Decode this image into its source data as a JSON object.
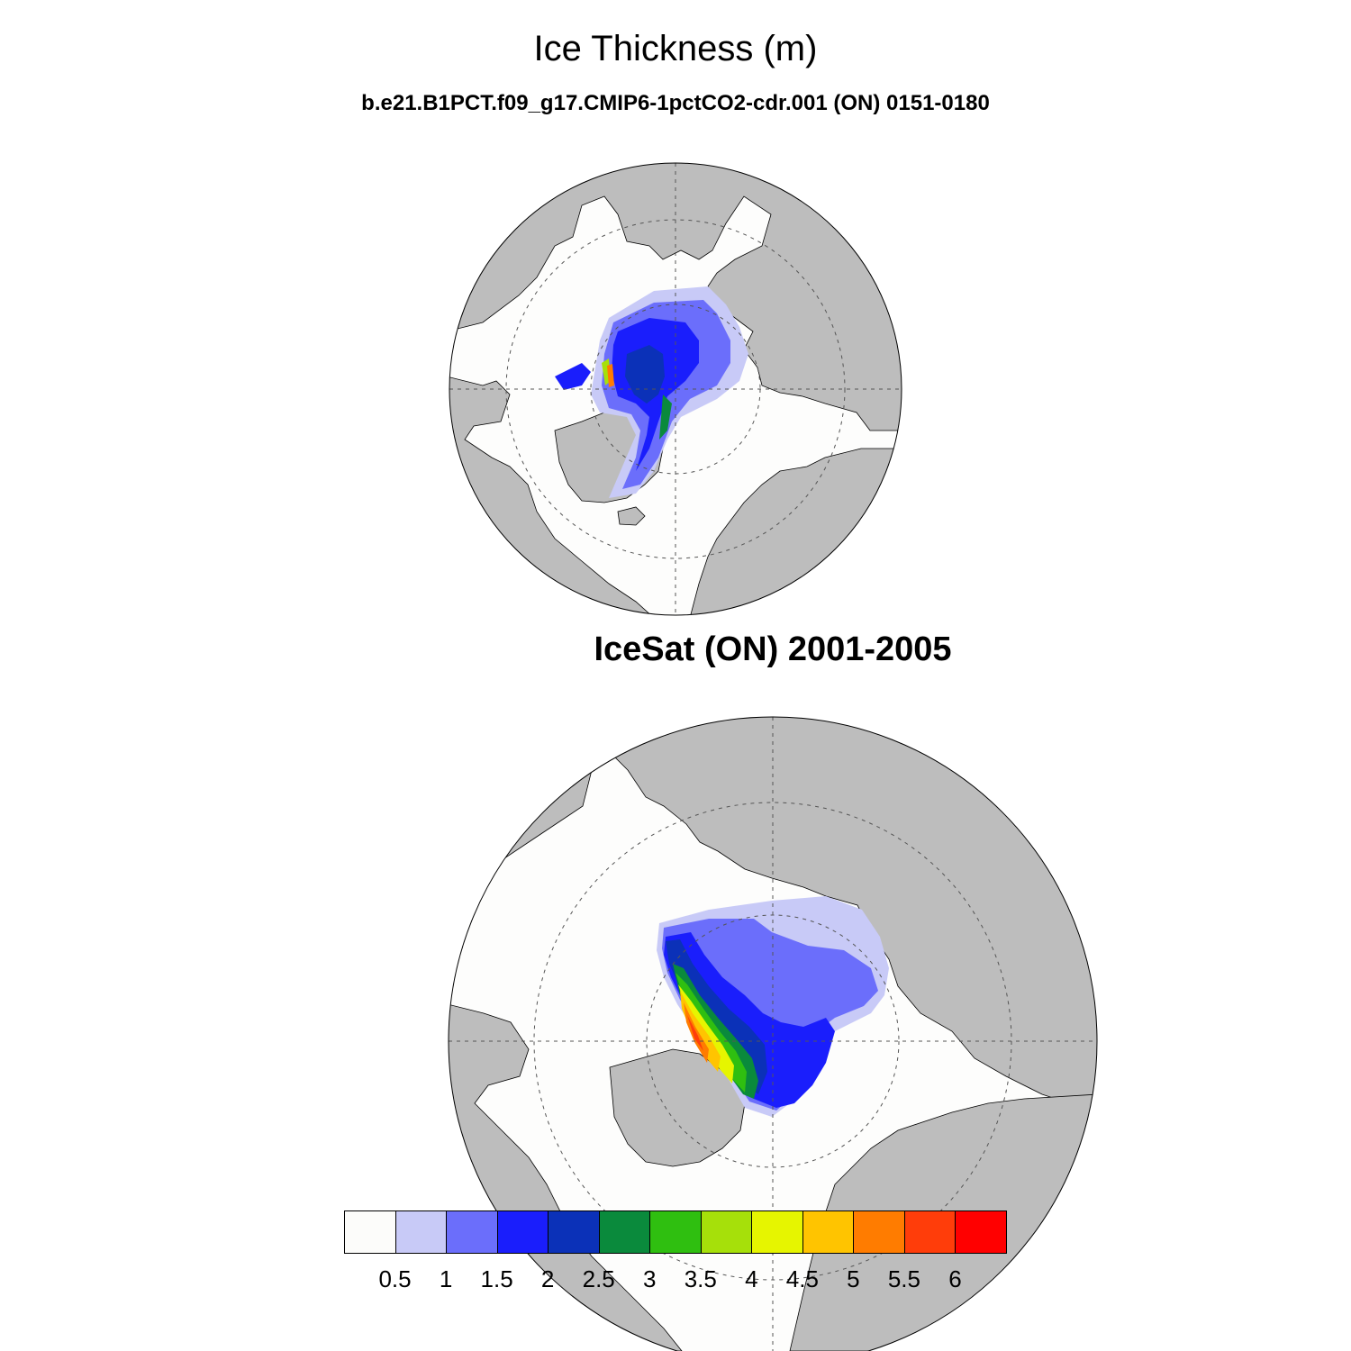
{
  "title": "Ice Thickness (m)",
  "model_title": "b.e21.B1PCT.f09_g17.CMIP6-1pctCO2-cdr.001 (ON) 0151-0180",
  "obs_title": "IceSat (ON) 2001-2005",
  "colors": {
    "land": "#bdbdbd",
    "ocean": "#fdfdfc",
    "outline": "#000000",
    "grid": "#555555"
  },
  "colorbar": {
    "fill_colors": [
      "#fcfcfa",
      "#c8caf7",
      "#6b6efb",
      "#1a1efc",
      "#0b31b8",
      "#0a8a3c",
      "#2fbf10",
      "#a6e00a",
      "#e6f500",
      "#ffc400",
      "#ff7c00",
      "#ff3d0a",
      "#ff0000"
    ],
    "labels": [
      "0.5",
      "1",
      "1.5",
      "2",
      "2.5",
      "3",
      "3.5",
      "4",
      "4.5",
      "5",
      "5.5",
      "6"
    ]
  }
}
